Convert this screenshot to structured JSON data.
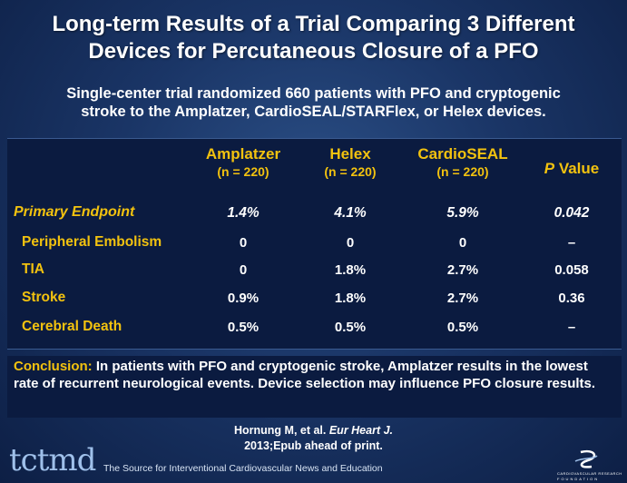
{
  "slide": {
    "title_line1": "Long-term Results of a Trial Comparing 3 Different",
    "title_line2": "Devices for Percutaneous Closure of a PFO",
    "subtitle_line1": "Single-center trial randomized 660 patients with PFO and cryptogenic",
    "subtitle_line2": "stroke to the Amplatzer, CardioSEAL/STARFlex, or Helex devices."
  },
  "table": {
    "columns": [
      {
        "name": "Amplatzer",
        "n": "(n = 220)"
      },
      {
        "name": "Helex",
        "n": "(n = 220)"
      },
      {
        "name": "CardioSEAL",
        "n": "(n = 220)"
      }
    ],
    "p_header_italic": "P",
    "p_header_rest": " Value",
    "rows": [
      {
        "label": "Primary Endpoint",
        "values": [
          "1.4%",
          "4.1%",
          "5.9%"
        ],
        "p": "0.042"
      },
      {
        "label": "Peripheral Embolism",
        "values": [
          "0",
          "0",
          "0"
        ],
        "p": "–"
      },
      {
        "label": "TIA",
        "values": [
          "0",
          "1.8%",
          "2.7%"
        ],
        "p": "0.058"
      },
      {
        "label": "Stroke",
        "values": [
          "0.9%",
          "1.8%",
          "2.7%"
        ],
        "p": "0.36"
      },
      {
        "label": "Cerebral Death",
        "values": [
          "0.5%",
          "0.5%",
          "0.5%"
        ],
        "p": "–"
      }
    ]
  },
  "conclusion": {
    "lead": "Conclusion:",
    "text": " In patients with PFO and cryptogenic stroke, Amplatzer results in the lowest rate of recurrent neurological events. Device selection may influence PFO closure results."
  },
  "citation": {
    "authors": "Hornung M, et al. ",
    "journal": "Eur Heart J.",
    "details": "2013;Epub ahead of print."
  },
  "footer": {
    "logo": "tctmd",
    "tagline": "The Source for Interventional Cardiovascular News and Education",
    "crf_line1": "CARDIOVASCULAR RESEARCH",
    "crf_line2": "FOUNDATION"
  },
  "colors": {
    "accent": "#f2c20f",
    "background": "#1a3566",
    "table_bg": "#0b1b40"
  }
}
